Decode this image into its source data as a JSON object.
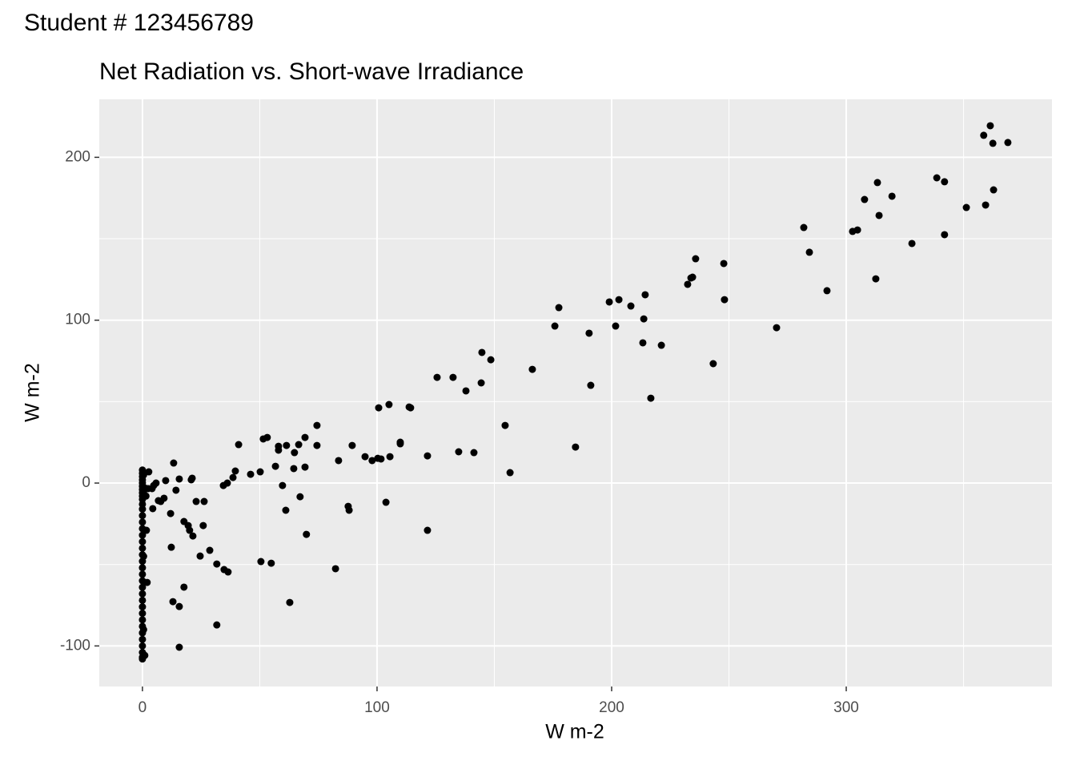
{
  "page_title": "Student # 123456789",
  "chart_data": {
    "type": "scatter",
    "title": "Net Radiation vs. Short-wave Irradiance",
    "x_label": "W m-2",
    "y_label": "W m-2",
    "color": "#000000",
    "xlim": [
      -18.4,
      387.7
    ],
    "ylim": [
      -124.9,
      235.6
    ],
    "xticks": [
      0,
      100,
      200,
      300
    ],
    "yticks": [
      -100,
      0,
      100,
      200
    ],
    "x_minor_breaks": [
      50,
      150,
      250,
      350
    ],
    "y_minor_breaks": [
      -50,
      50,
      150
    ],
    "grid": true,
    "x": [
      361.4,
      358.6,
      362.5,
      368.9,
      362.8,
      359.4,
      351.2,
      338.6,
      341.9,
      341.9,
      328.0,
      319.5,
      313.3,
      307.8,
      314.0,
      312.6,
      304.8,
      302.7,
      281.9,
      284.3,
      291.8,
      270.3,
      235.8,
      234.5,
      233.8,
      232.4,
      247.8,
      248.1,
      243.3,
      214.3,
      213.7,
      213.3,
      221.2,
      216.7,
      208.2,
      203.1,
      199.0,
      201.7,
      190.4,
      191.1,
      177.5,
      175.8,
      184.6,
      166.2,
      148.5,
      144.7,
      144.4,
      137.9,
      132.4,
      125.6,
      154.6,
      156.7,
      141.3,
      134.8,
      121.5,
      121.5,
      114.3,
      113.7,
      109.9,
      109.9,
      105.1,
      100.7,
      105.5,
      101.7,
      100.3,
      97.9,
      94.9,
      103.8,
      89.4,
      87.7,
      88.1,
      83.6,
      82.3,
      74.4,
      74.4,
      69.3,
      66.6,
      64.8,
      69.3,
      64.5,
      67.2,
      69.9,
      62.8,
      61.4,
      58.0,
      58.0,
      56.7,
      59.7,
      61.1,
      54.9,
      50.5,
      53.2,
      51.5,
      50.2,
      46.1,
      41.0,
      39.6,
      38.6,
      36.2,
      34.5,
      36.5,
      34.8,
      31.7,
      31.7,
      28.7,
      26.3,
      22.9,
      25.9,
      24.6,
      21.2,
      20.8,
      21.5,
      20.1,
      19.5,
      17.7,
      17.7,
      15.7,
      14.3,
      13.3,
      12.0,
      12.3,
      13.0,
      15.7,
      15.7,
      9.9,
      9.2,
      7.8,
      6.8,
      5.8,
      4.8,
      4.1,
      4.4,
      2.7,
      2.4,
      1.7,
      2.0,
      1.0,
      0,
      0,
      0,
      0,
      0,
      0,
      0,
      0,
      0,
      0,
      0,
      0,
      0,
      0,
      0,
      0,
      0,
      0,
      0,
      0,
      0,
      0,
      0,
      0,
      0,
      0,
      0,
      0,
      0,
      0,
      0,
      0,
      0,
      0,
      0,
      0,
      0.5,
      0.5,
      0.5,
      0.5,
      1.0,
      1.5
    ],
    "y": [
      219.4,
      213.5,
      208.6,
      209.1,
      180.0,
      170.7,
      169.2,
      187.4,
      185.0,
      152.5,
      147.1,
      176.1,
      184.5,
      174.1,
      164.3,
      125.4,
      155.4,
      154.5,
      156.9,
      141.7,
      118.1,
      95.4,
      137.7,
      126.4,
      125.9,
      122.0,
      134.8,
      112.6,
      73.3,
      115.6,
      100.8,
      86.1,
      84.6,
      52.1,
      108.7,
      112.6,
      111.2,
      96.4,
      92.0,
      60.0,
      107.7,
      96.4,
      22.1,
      69.8,
      75.7,
      80.2,
      61.5,
      56.6,
      64.9,
      64.9,
      35.4,
      6.4,
      18.7,
      19.2,
      16.7,
      -29.0,
      46.2,
      46.7,
      24.1,
      25.1,
      48.2,
      46.2,
      16.2,
      14.8,
      15.2,
      13.8,
      16.2,
      -11.8,
      23.1,
      -14.3,
      -16.7,
      13.8,
      -52.6,
      35.4,
      23.1,
      28.0,
      23.6,
      18.7,
      9.8,
      8.9,
      -8.4,
      -31.5,
      -73.3,
      23.1,
      22.6,
      20.2,
      10.3,
      -1.5,
      -16.7,
      -49.2,
      -48.2,
      28.0,
      27.1,
      6.9,
      5.4,
      23.6,
      7.4,
      3.4,
      0,
      -1.5,
      -54.6,
      -53.1,
      -49.7,
      -87.1,
      -41.3,
      -11.3,
      -11.3,
      -26.1,
      -44.8,
      3.0,
      2.0,
      -32.5,
      -29.0,
      -26.1,
      -23.6,
      -63.9,
      2.5,
      -4.4,
      12.3,
      -18.7,
      -39.4,
      -72.8,
      -75.8,
      -100.8,
      1.5,
      -9.3,
      -11.3,
      -10.8,
      0,
      -1.5,
      -3.4,
      -15.7,
      6.9,
      -3.4,
      -29.0,
      -61.0,
      -105.8,
      8,
      6,
      4,
      2,
      0,
      -2,
      -4,
      -6,
      -8,
      -10,
      -13,
      -16,
      -20,
      -24,
      -28,
      -32,
      -36,
      -40,
      -44,
      -48,
      -52,
      -56,
      -60,
      -64,
      -68,
      -72,
      -76,
      -80,
      -84,
      -88,
      -92,
      -96,
      -100,
      -104,
      -107,
      -108,
      5,
      -5,
      -45,
      -90,
      -3,
      -8
    ]
  }
}
